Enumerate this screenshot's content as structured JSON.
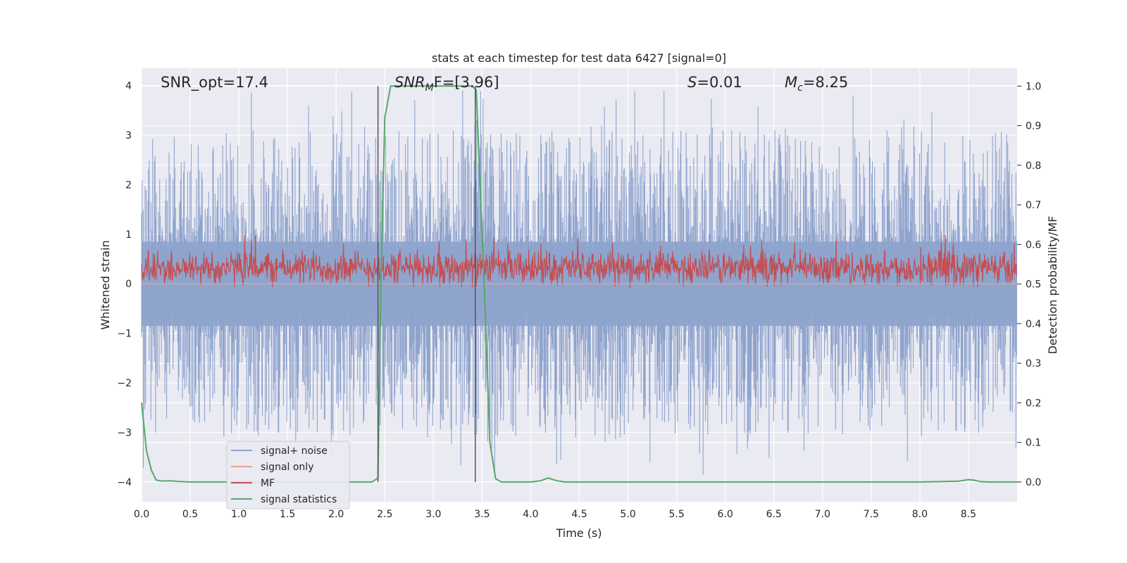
{
  "chart_data": {
    "type": "line",
    "title": "stats at each timestep for test data 6427 [signal=0]",
    "xlabel": "Time (s)",
    "ylabel": "Whitened strain",
    "ylabel_right": "Detection probability/MF",
    "xlim": [
      0.0,
      9.0
    ],
    "ylim": [
      -4.4,
      4.35
    ],
    "ylim_right": [
      -0.05,
      1.045
    ],
    "xticks": [
      "0.0",
      "0.5",
      "1.0",
      "1.5",
      "2.0",
      "2.5",
      "3.0",
      "3.5",
      "4.0",
      "4.5",
      "5.0",
      "5.5",
      "6.0",
      "6.5",
      "7.0",
      "7.5",
      "8.0",
      "8.5"
    ],
    "yticks": [
      "−4",
      "−3",
      "−2",
      "−1",
      "0",
      "1",
      "2",
      "3",
      "4"
    ],
    "yticks_right": [
      "0.0",
      "0.1",
      "0.2",
      "0.3",
      "0.4",
      "0.5",
      "0.6",
      "0.7",
      "0.8",
      "0.9",
      "1.0"
    ],
    "annotations": {
      "snr_opt": "SNR_opt=17.4",
      "snr_mf_sym": "SNR",
      "snr_mf_sub": "M",
      "snr_mf_rest": "F=[3.96]",
      "s_sym": "S",
      "s_rest": "=0.01",
      "mc_sym": "M",
      "mc_sub": "c",
      "mc_rest": "=8.25"
    },
    "vlines_x": [
      2.43,
      3.43
    ],
    "series": [
      {
        "name": "signal+ noise",
        "color": "#8fa4cd",
        "kind": "noise",
        "envelope_upper": 2.1,
        "envelope_lower": -2.1,
        "peak_max": 3.9,
        "peak_min": -3.9
      },
      {
        "name": "signal only",
        "color": "#e8a58a",
        "kind": "flat",
        "value": 0.0
      },
      {
        "name": "MF",
        "color": "#c44e52",
        "kind": "band",
        "center": 0.32,
        "halfwidth": 0.42
      },
      {
        "name": "signal statistics",
        "color": "#55a868",
        "kind": "prob",
        "axis": "right",
        "x": [
          0.0,
          0.05,
          0.1,
          0.15,
          0.2,
          0.3,
          0.4,
          0.5,
          1.0,
          2.0,
          2.37,
          2.43,
          2.46,
          2.5,
          2.56,
          2.7,
          3.0,
          3.3,
          3.4,
          3.44,
          3.48,
          3.53,
          3.58,
          3.64,
          3.7,
          3.75,
          4.0,
          4.1,
          4.18,
          4.27,
          4.35,
          5.0,
          6.0,
          7.0,
          8.0,
          8.4,
          8.5,
          8.55,
          8.62,
          8.7,
          9.0
        ],
        "y": [
          0.2,
          0.08,
          0.03,
          0.005,
          0.0025,
          0.003,
          0.001,
          0.0,
          0.0,
          0.0,
          0.0,
          0.01,
          0.5,
          0.92,
          1.0,
          1.0,
          1.0,
          1.0,
          1.0,
          0.99,
          0.75,
          0.45,
          0.1,
          0.008,
          0.0,
          0.0,
          0.0,
          0.003,
          0.01,
          0.003,
          0.0,
          0.0,
          0.0,
          0.0,
          0.0,
          0.002,
          0.006,
          0.005,
          0.001,
          0.0,
          0.0
        ]
      }
    ],
    "legend_position": "lower-left",
    "grid": true
  }
}
